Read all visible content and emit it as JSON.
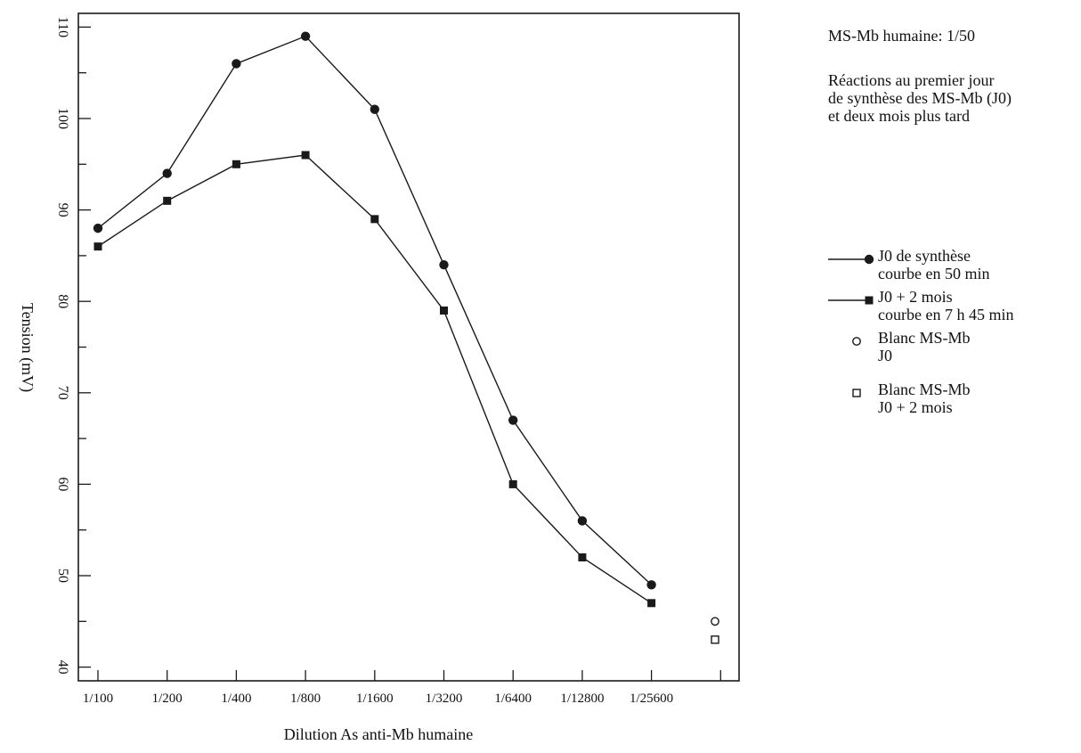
{
  "annotations": {
    "title": "MS-Mb humaine: 1/50",
    "description": "Réactions au premier jour\nde synthèse des MS-Mb (J0)\net deux mois plus tard"
  },
  "legend": [
    {
      "text": "J0 de synthèse\ncourbe en 50 min",
      "marker": "filled-circle",
      "line": true
    },
    {
      "text": "J0 + 2 mois\ncourbe en 7 h 45 min",
      "marker": "filled-square",
      "line": true
    },
    {
      "text": "Blanc MS-Mb\nJ0",
      "marker": "open-circle",
      "line": false
    },
    {
      "text": "Blanc MS-Mb\nJ0 + 2 mois",
      "marker": "open-square",
      "line": false
    }
  ],
  "chart_data": {
    "type": "line",
    "xlabel": "Dilution As anti-Mb humaine",
    "ylabel": "Tension (mV)",
    "categories": [
      "1/100",
      "1/200",
      "1/400",
      "1/800",
      "1/1600",
      "1/3200",
      "1/6400",
      "1/12800",
      "1/25600"
    ],
    "ylim": [
      38.5,
      111.5
    ],
    "yticks": [
      40,
      50,
      60,
      70,
      80,
      90,
      100,
      110
    ],
    "grid": false,
    "legend_position": "right",
    "series": [
      {
        "name": "J0 de synthèse",
        "marker": "filled-circle",
        "values": [
          88,
          94,
          106,
          109,
          101,
          84,
          67,
          56,
          49
        ]
      },
      {
        "name": "J0 + 2 mois",
        "marker": "filled-square",
        "values": [
          86,
          91,
          95,
          96,
          89,
          79,
          60,
          52,
          47
        ]
      }
    ],
    "blanks": [
      {
        "name": "Blanc MS-Mb J0",
        "marker": "open-circle",
        "value": 45
      },
      {
        "name": "Blanc MS-Mb J0 + 2 mois",
        "marker": "open-square",
        "value": 43
      }
    ]
  }
}
